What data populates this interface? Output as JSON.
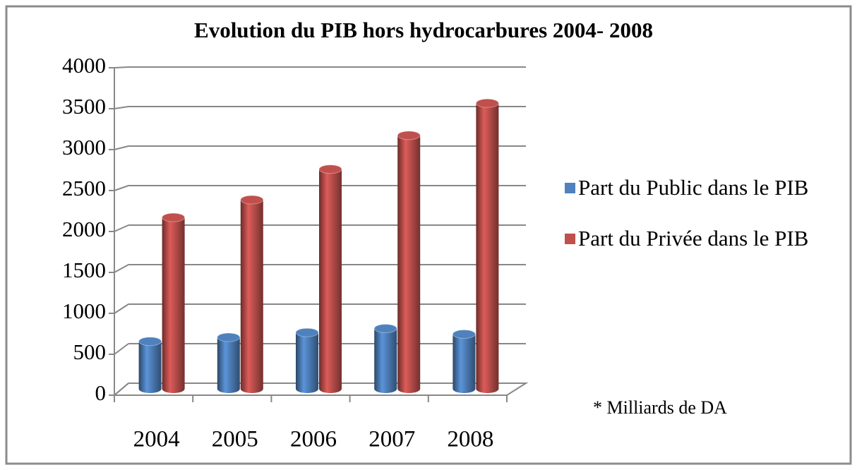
{
  "chart_data": {
    "type": "bar3d",
    "title": "Evolution du PIB hors hydrocarbures 2004- 2008",
    "categories": [
      "2004",
      "2005",
      "2006",
      "2007",
      "2008"
    ],
    "series": [
      {
        "name": "Part du Public dans le PIB",
        "color": "#4f81bd",
        "values": [
          590,
          640,
          700,
          750,
          680
        ]
      },
      {
        "name": "Part du Privée dans le PIB",
        "color": "#c0504d",
        "values": [
          2130,
          2350,
          2730,
          3150,
          3550
        ]
      }
    ],
    "ylim": [
      0,
      4000
    ],
    "yticks": [
      0,
      500,
      1000,
      1500,
      2000,
      2500,
      3000,
      3500,
      4000
    ],
    "grid": true,
    "legend": "right",
    "annotation": "* Milliards de DA"
  }
}
